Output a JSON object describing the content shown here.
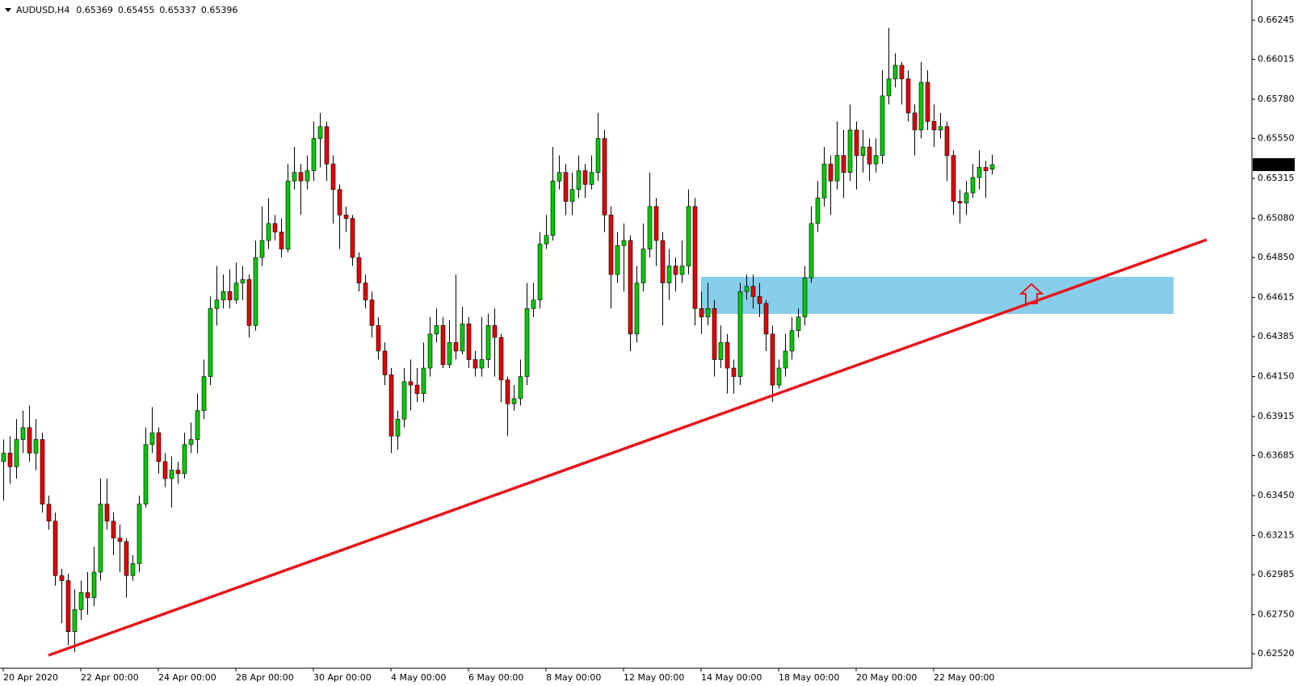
{
  "chart_data": {
    "type": "candlestick",
    "symbol": "AUDUSD,H4",
    "up_color": "#00c800",
    "down_color": "#e00000",
    "grid": false,
    "ylim": [
      0.62435,
      0.66364
    ],
    "yticks": [
      0.66245,
      0.66015,
      {
        "value": 0.6578,
        "label": "0.65780"
      },
      {
        "value": 0.6555,
        "label": "0.65550"
      },
      0.65315,
      {
        "value": 0.6508,
        "label": "0.65080"
      },
      {
        "value": 0.6485,
        "label": "0.64850"
      },
      0.64615,
      0.64385,
      {
        "value": 0.6415,
        "label": "0.64150"
      },
      0.63915,
      0.63685,
      {
        "value": 0.6345,
        "label": "0.63450"
      },
      0.63215,
      0.62985,
      {
        "value": 0.6275,
        "label": "0.62750"
      },
      {
        "value": 0.6252,
        "label": "0.62520"
      }
    ],
    "xticks": [
      {
        "value": 0,
        "label": "20 Apr 2020"
      },
      {
        "value": 12,
        "label": "22 Apr 00:00"
      },
      {
        "value": 24,
        "label": "24 Apr 00:00"
      },
      {
        "value": 36,
        "label": "28 Apr 00:00"
      },
      {
        "value": 48,
        "label": "30 Apr 00:00"
      },
      {
        "value": 60,
        "label": "4 May 00:00"
      },
      {
        "value": 72,
        "label": "6 May 00:00"
      },
      {
        "value": 84,
        "label": "8 May 00:00"
      },
      {
        "value": 96,
        "label": "12 May 00:00"
      },
      {
        "value": 108,
        "label": "14 May 00:00"
      },
      {
        "value": 120,
        "label": "18 May 00:00"
      },
      {
        "value": 132,
        "label": "20 May 00:00"
      },
      {
        "value": 144,
        "label": "22 May 00:00"
      }
    ],
    "candles": [
      [
        0.6365,
        0.6378,
        0.6342,
        0.637
      ],
      [
        0.637,
        0.638,
        0.6352,
        0.6362
      ],
      [
        0.6362,
        0.639,
        0.6355,
        0.6378
      ],
      [
        0.6378,
        0.6395,
        0.637,
        0.6385
      ],
      [
        0.6385,
        0.6398,
        0.6365,
        0.637
      ],
      [
        0.637,
        0.639,
        0.636,
        0.6378
      ],
      [
        0.6378,
        0.6382,
        0.6335,
        0.634
      ],
      [
        0.634,
        0.6345,
        0.6325,
        0.633
      ],
      [
        0.633,
        0.6335,
        0.6292,
        0.6298
      ],
      [
        0.6298,
        0.6302,
        0.627,
        0.6295
      ],
      [
        0.6295,
        0.6299,
        0.6257,
        0.6265
      ],
      [
        0.6265,
        0.629,
        0.6253,
        0.6278
      ],
      [
        0.6278,
        0.6295,
        0.6272,
        0.6288
      ],
      [
        0.6288,
        0.63,
        0.6275,
        0.6285
      ],
      [
        0.6285,
        0.6315,
        0.628,
        0.63
      ],
      [
        0.63,
        0.6355,
        0.6295,
        0.634
      ],
      [
        0.634,
        0.6355,
        0.6325,
        0.633
      ],
      [
        0.633,
        0.6335,
        0.631,
        0.632
      ],
      [
        0.632,
        0.6328,
        0.63,
        0.6318
      ],
      [
        0.6318,
        0.632,
        0.6285,
        0.6298
      ],
      [
        0.6298,
        0.631,
        0.6295,
        0.6305
      ],
      [
        0.6305,
        0.6345,
        0.63,
        0.634
      ],
      [
        0.634,
        0.6385,
        0.6338,
        0.6375
      ],
      [
        0.6375,
        0.6397,
        0.637,
        0.6382
      ],
      [
        0.6382,
        0.6385,
        0.6358,
        0.6365
      ],
      [
        0.6365,
        0.637,
        0.635,
        0.6355
      ],
      [
        0.6355,
        0.6368,
        0.6338,
        0.636
      ],
      [
        0.636,
        0.6365,
        0.6352,
        0.6358
      ],
      [
        0.6358,
        0.6382,
        0.6355,
        0.6375
      ],
      [
        0.6375,
        0.6388,
        0.637,
        0.6378
      ],
      [
        0.6378,
        0.6405,
        0.637,
        0.6395
      ],
      [
        0.6395,
        0.6425,
        0.639,
        0.6415
      ],
      [
        0.6415,
        0.6462,
        0.641,
        0.6455
      ],
      [
        0.6455,
        0.648,
        0.6445,
        0.646
      ],
      [
        0.646,
        0.6475,
        0.6455,
        0.6465
      ],
      [
        0.6465,
        0.6478,
        0.6455,
        0.646
      ],
      [
        0.646,
        0.6482,
        0.6458,
        0.647
      ],
      [
        0.647,
        0.648,
        0.646,
        0.6472
      ],
      [
        0.6472,
        0.6475,
        0.6438,
        0.6445
      ],
      [
        0.6445,
        0.6495,
        0.6442,
        0.6485
      ],
      [
        0.6485,
        0.6515,
        0.648,
        0.6495
      ],
      [
        0.6495,
        0.652,
        0.649,
        0.6505
      ],
      [
        0.6505,
        0.651,
        0.6495,
        0.65
      ],
      [
        0.65,
        0.6508,
        0.6485,
        0.649
      ],
      [
        0.649,
        0.654,
        0.6488,
        0.653
      ],
      [
        0.653,
        0.655,
        0.6525,
        0.6535
      ],
      [
        0.6535,
        0.654,
        0.651,
        0.653
      ],
      [
        0.653,
        0.6545,
        0.6525,
        0.6536
      ],
      [
        0.6536,
        0.6565,
        0.653,
        0.6555
      ],
      [
        0.6555,
        0.657,
        0.6538,
        0.6562
      ],
      [
        0.6562,
        0.6565,
        0.653,
        0.654
      ],
      [
        0.654,
        0.6545,
        0.6505,
        0.6525
      ],
      [
        0.6525,
        0.6528,
        0.649,
        0.651
      ],
      [
        0.651,
        0.6515,
        0.65,
        0.6508
      ],
      [
        0.6508,
        0.651,
        0.648,
        0.6485
      ],
      [
        0.6485,
        0.6488,
        0.6465,
        0.647
      ],
      [
        0.647,
        0.6475,
        0.6455,
        0.646
      ],
      [
        0.646,
        0.6465,
        0.6438,
        0.6445
      ],
      [
        0.6445,
        0.645,
        0.6425,
        0.643
      ],
      [
        0.643,
        0.6435,
        0.641,
        0.6416
      ],
      [
        0.6416,
        0.642,
        0.637,
        0.638
      ],
      [
        0.638,
        0.6395,
        0.6372,
        0.639
      ],
      [
        0.639,
        0.642,
        0.6385,
        0.6412
      ],
      [
        0.6412,
        0.6425,
        0.6395,
        0.641
      ],
      [
        0.641,
        0.642,
        0.64,
        0.6405
      ],
      [
        0.6405,
        0.6435,
        0.64,
        0.642
      ],
      [
        0.642,
        0.645,
        0.6415,
        0.644
      ],
      [
        0.644,
        0.6455,
        0.6435,
        0.6445
      ],
      [
        0.6445,
        0.645,
        0.642,
        0.6422
      ],
      [
        0.6422,
        0.6448,
        0.642,
        0.6435
      ],
      [
        0.6435,
        0.6475,
        0.6425,
        0.643
      ],
      [
        0.643,
        0.6456,
        0.6428,
        0.6446
      ],
      [
        0.6446,
        0.645,
        0.642,
        0.6425
      ],
      [
        0.6425,
        0.643,
        0.6415,
        0.642
      ],
      [
        0.642,
        0.645,
        0.6415,
        0.6425
      ],
      [
        0.6425,
        0.6452,
        0.642,
        0.6445
      ],
      [
        0.6445,
        0.6455,
        0.6415,
        0.6438
      ],
      [
        0.6438,
        0.644,
        0.64,
        0.6413
      ],
      [
        0.6413,
        0.6415,
        0.638,
        0.6399
      ],
      [
        0.6399,
        0.641,
        0.6395,
        0.6402
      ],
      [
        0.6402,
        0.6425,
        0.6398,
        0.6415
      ],
      [
        0.6415,
        0.647,
        0.641,
        0.6455
      ],
      [
        0.6455,
        0.647,
        0.645,
        0.646
      ],
      [
        0.646,
        0.65,
        0.6455,
        0.6493
      ],
      [
        0.6493,
        0.651,
        0.649,
        0.6498
      ],
      [
        0.6498,
        0.655,
        0.6495,
        0.653
      ],
      [
        0.653,
        0.6545,
        0.6525,
        0.6535
      ],
      [
        0.6535,
        0.654,
        0.651,
        0.6518
      ],
      [
        0.6518,
        0.6535,
        0.651,
        0.6525
      ],
      [
        0.6525,
        0.6545,
        0.652,
        0.6536
      ],
      [
        0.6536,
        0.654,
        0.652,
        0.6528
      ],
      [
        0.6528,
        0.6545,
        0.6525,
        0.6535
      ],
      [
        0.6535,
        0.657,
        0.653,
        0.6555
      ],
      [
        0.6555,
        0.656,
        0.65,
        0.651
      ],
      [
        0.651,
        0.6515,
        0.6455,
        0.6475
      ],
      [
        0.6475,
        0.65,
        0.647,
        0.6492
      ],
      [
        0.6492,
        0.6505,
        0.6465,
        0.6495
      ],
      [
        0.6495,
        0.6498,
        0.643,
        0.644
      ],
      [
        0.644,
        0.648,
        0.6435,
        0.647
      ],
      [
        0.647,
        0.6505,
        0.6465,
        0.649
      ],
      [
        0.649,
        0.6535,
        0.6485,
        0.6515
      ],
      [
        0.6515,
        0.652,
        0.648,
        0.6495
      ],
      [
        0.6495,
        0.65,
        0.6445,
        0.647
      ],
      [
        0.647,
        0.649,
        0.646,
        0.648
      ],
      [
        0.648,
        0.6485,
        0.6465,
        0.6475
      ],
      [
        0.6475,
        0.6495,
        0.647,
        0.648
      ],
      [
        0.648,
        0.6525,
        0.6475,
        0.6515
      ],
      [
        0.6515,
        0.652,
        0.6445,
        0.6455
      ],
      [
        0.6455,
        0.6465,
        0.644,
        0.645
      ],
      [
        0.645,
        0.647,
        0.6445,
        0.6455
      ],
      [
        0.6455,
        0.646,
        0.6415,
        0.6425
      ],
      [
        0.6425,
        0.6445,
        0.642,
        0.6435
      ],
      [
        0.6435,
        0.644,
        0.6405,
        0.642
      ],
      [
        0.642,
        0.6425,
        0.6405,
        0.6415
      ],
      [
        0.6415,
        0.647,
        0.641,
        0.6465
      ],
      [
        0.6465,
        0.6475,
        0.646,
        0.6468
      ],
      [
        0.6468,
        0.6475,
        0.6455,
        0.6462
      ],
      [
        0.6462,
        0.647,
        0.645,
        0.6458
      ],
      [
        0.6458,
        0.646,
        0.643,
        0.644
      ],
      [
        0.644,
        0.6445,
        0.64,
        0.641
      ],
      [
        0.641,
        0.6425,
        0.6408,
        0.642
      ],
      [
        0.642,
        0.644,
        0.6415,
        0.643
      ],
      [
        0.643,
        0.645,
        0.6425,
        0.6442
      ],
      [
        0.6442,
        0.6455,
        0.6438,
        0.645
      ],
      [
        0.645,
        0.648,
        0.6445,
        0.6473
      ],
      [
        0.6473,
        0.6515,
        0.647,
        0.6505
      ],
      [
        0.6505,
        0.653,
        0.65,
        0.652
      ],
      [
        0.652,
        0.655,
        0.6515,
        0.654
      ],
      [
        0.654,
        0.6545,
        0.651,
        0.653
      ],
      [
        0.653,
        0.6565,
        0.6525,
        0.6545
      ],
      [
        0.6545,
        0.656,
        0.652,
        0.6535
      ],
      [
        0.6535,
        0.6575,
        0.653,
        0.656
      ],
      [
        0.656,
        0.6565,
        0.6525,
        0.6545
      ],
      [
        0.6545,
        0.656,
        0.6535,
        0.655
      ],
      [
        0.655,
        0.6555,
        0.653,
        0.654
      ],
      [
        0.654,
        0.6555,
        0.6535,
        0.6545
      ],
      [
        0.6545,
        0.6595,
        0.654,
        0.658
      ],
      [
        0.658,
        0.662,
        0.6575,
        0.659
      ],
      [
        0.659,
        0.6605,
        0.6585,
        0.6598
      ],
      [
        0.6598,
        0.66,
        0.6575,
        0.659
      ],
      [
        0.659,
        0.6595,
        0.6565,
        0.657
      ],
      [
        0.657,
        0.6575,
        0.6545,
        0.656
      ],
      [
        0.656,
        0.66,
        0.6555,
        0.6588
      ],
      [
        0.6588,
        0.6595,
        0.656,
        0.6565
      ],
      [
        0.6565,
        0.6575,
        0.655,
        0.656
      ],
      [
        0.656,
        0.657,
        0.6555,
        0.6562
      ],
      [
        0.6562,
        0.6565,
        0.653,
        0.6545
      ],
      [
        0.6545,
        0.6548,
        0.651,
        0.6518
      ],
      [
        0.6518,
        0.6525,
        0.6505,
        0.6517
      ],
      [
        0.6517,
        0.653,
        0.651,
        0.6523
      ],
      [
        0.6523,
        0.654,
        0.652,
        0.6532
      ],
      [
        0.6532,
        0.6548,
        0.6525,
        0.6538
      ],
      [
        0.6538,
        0.6542,
        0.652,
        0.6536
      ],
      [
        0.65369,
        0.65455,
        0.65337,
        0.65396
      ]
    ]
  }
}
